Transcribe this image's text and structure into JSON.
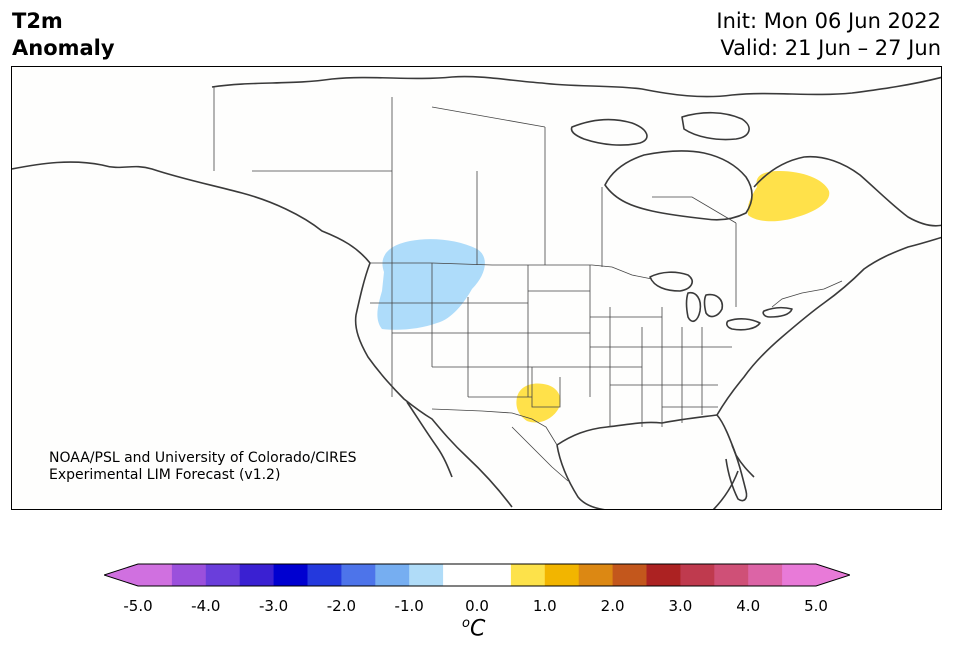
{
  "title": {
    "left_line1": "T2m",
    "left_line2": "Anomaly",
    "right_line1": "Init: Mon 06 Jun 2022",
    "right_line2": "Valid: 21 Jun – 27 Jun"
  },
  "credit": {
    "line1": "NOAA/PSL and University of Colorado/CIRES",
    "line2": "Experimental LIM Forecast (v1.2)"
  },
  "colorbar": {
    "unit_base": "C",
    "unit_prefix": "o",
    "ticks": [
      "-5.0",
      "-4.0",
      "-3.0",
      "-2.0",
      "-1.0",
      "0.0",
      "1.0",
      "2.0",
      "3.0",
      "4.0",
      "5.0"
    ],
    "bins": [
      {
        "lo": -5.0,
        "hi": -4.5,
        "color": "#d070e0"
      },
      {
        "lo": -4.5,
        "hi": -4.0,
        "color": "#9b50dc"
      },
      {
        "lo": -4.0,
        "hi": -3.5,
        "color": "#6a3edb"
      },
      {
        "lo": -3.5,
        "hi": -3.0,
        "color": "#3a20d2"
      },
      {
        "lo": -3.0,
        "hi": -2.5,
        "color": "#0000d0"
      },
      {
        "lo": -2.5,
        "hi": -2.0,
        "color": "#2439dd"
      },
      {
        "lo": -2.0,
        "hi": -1.5,
        "color": "#4d74ea"
      },
      {
        "lo": -1.5,
        "hi": -1.0,
        "color": "#76aef1"
      },
      {
        "lo": -1.0,
        "hi": -0.5,
        "color": "#b0dcf8"
      },
      {
        "lo": -0.5,
        "hi": 0.5,
        "color": "#ffffff"
      },
      {
        "lo": 0.5,
        "hi": 1.0,
        "color": "#fde24a"
      },
      {
        "lo": 1.0,
        "hi": 1.5,
        "color": "#f2b500"
      },
      {
        "lo": 1.5,
        "hi": 2.0,
        "color": "#dc8813"
      },
      {
        "lo": 2.0,
        "hi": 2.5,
        "color": "#c3571c"
      },
      {
        "lo": 2.5,
        "hi": 3.0,
        "color": "#ac2222"
      },
      {
        "lo": 3.0,
        "hi": 3.5,
        "color": "#bf3a4e"
      },
      {
        "lo": 3.5,
        "hi": 4.0,
        "color": "#cf5077"
      },
      {
        "lo": 4.0,
        "hi": 4.5,
        "color": "#dc64a6"
      },
      {
        "lo": 4.5,
        "hi": 5.0,
        "color": "#e87ad8"
      }
    ],
    "under_color": "#d070e0",
    "over_color": "#e87ad8"
  },
  "anomalies": [
    {
      "name": "northwest-cold-anomaly",
      "region": "Pacific Northwest / Northern Rockies",
      "range": "-1.0 to -0.5",
      "color": "#aedcfa"
    },
    {
      "name": "hudson-bay-warm-anomaly",
      "region": "Hudson Bay / Northern Quebec",
      "range": "0.5 to 1.0",
      "color": "#ffe14a"
    },
    {
      "name": "texas-warm-anomaly",
      "region": "West Texas / New Mexico",
      "range": "0.5 to 1.0",
      "color": "#ffe14a"
    }
  ]
}
